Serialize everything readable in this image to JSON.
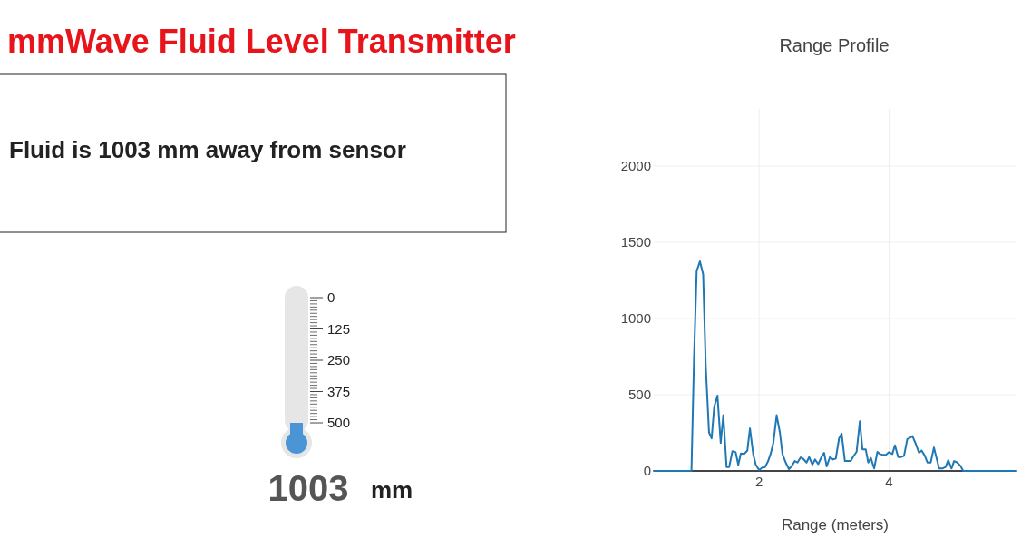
{
  "chart_data": [
    {
      "type": "other",
      "title": "mmWave Fluid Level Transmitter",
      "annotations": [
        "Fluid is 1003 mm away from sensor"
      ]
    },
    {
      "type": "bar",
      "categories": [
        null
      ],
      "base": [
        580
      ],
      "values": [
        -80
      ],
      "color": "#4b95d6",
      "ylim": [
        580,
        0
      ],
      "yticks": [
        0,
        125,
        250,
        375,
        500
      ],
      "annotations": [
        "1003",
        "mm"
      ]
    },
    {
      "type": "line",
      "title": "Range Profile",
      "xlabel": "Range (meters)",
      "xlim": [
        0.38,
        5.96
      ],
      "xticks": [
        2,
        4
      ],
      "ylim": [
        0,
        2375
      ],
      "yticks": [
        0,
        500,
        1000,
        1500,
        2000
      ],
      "grid": true,
      "series": [
        {
          "color": "#1f77b4",
          "x": [
            0.38,
            0.96,
            1.0,
            1.04,
            1.09,
            1.14,
            1.18,
            1.23,
            1.27,
            1.31,
            1.36,
            1.41,
            1.45,
            1.5,
            1.54,
            1.59,
            1.64,
            1.68,
            1.72,
            1.77,
            1.82,
            1.86,
            1.91,
            1.95,
            2.0,
            2.05,
            2.09,
            2.14,
            2.18,
            2.22,
            2.27,
            2.32,
            2.36,
            2.41,
            2.46,
            2.5,
            2.55,
            2.59,
            2.64,
            2.68,
            2.73,
            2.77,
            2.82,
            2.86,
            2.91,
            2.96,
            3.0,
            3.04,
            3.09,
            3.14,
            3.18,
            3.23,
            3.27,
            3.32,
            3.37,
            3.41,
            3.45,
            3.5,
            3.55,
            3.59,
            3.64,
            3.68,
            3.72,
            3.77,
            3.82,
            3.86,
            3.91,
            3.95,
            4.0,
            4.05,
            4.09,
            4.14,
            4.18,
            4.23,
            4.28,
            4.32,
            4.36,
            4.41,
            4.46,
            4.5,
            4.55,
            4.59,
            4.64,
            4.69,
            4.73,
            4.77,
            4.82,
            4.87,
            4.91,
            4.96,
            5.0,
            5.05,
            5.1,
            5.14,
            5.96
          ],
          "values": [
            0,
            0,
            747,
            1310,
            1375,
            1290,
            688,
            253,
            213,
            421,
            494,
            184,
            366,
            26,
            26,
            130,
            123,
            40,
            115,
            111,
            134,
            279,
            109,
            40,
            6,
            22,
            24,
            65,
            115,
            184,
            366,
            253,
            111,
            55,
            12,
            30,
            65,
            55,
            89,
            79,
            55,
            91,
            42,
            75,
            45,
            91,
            119,
            30,
            91,
            75,
            81,
            213,
            245,
            65,
            65,
            65,
            95,
            125,
            326,
            142,
            142,
            55,
            85,
            16,
            125,
            111,
            105,
            105,
            123,
            111,
            168,
            91,
            91,
            99,
            209,
            217,
            229,
            178,
            119,
            134,
            99,
            55,
            55,
            154,
            85,
            16,
            16,
            26,
            71,
            16,
            65,
            55,
            32,
            0,
            0
          ]
        }
      ]
    }
  ]
}
